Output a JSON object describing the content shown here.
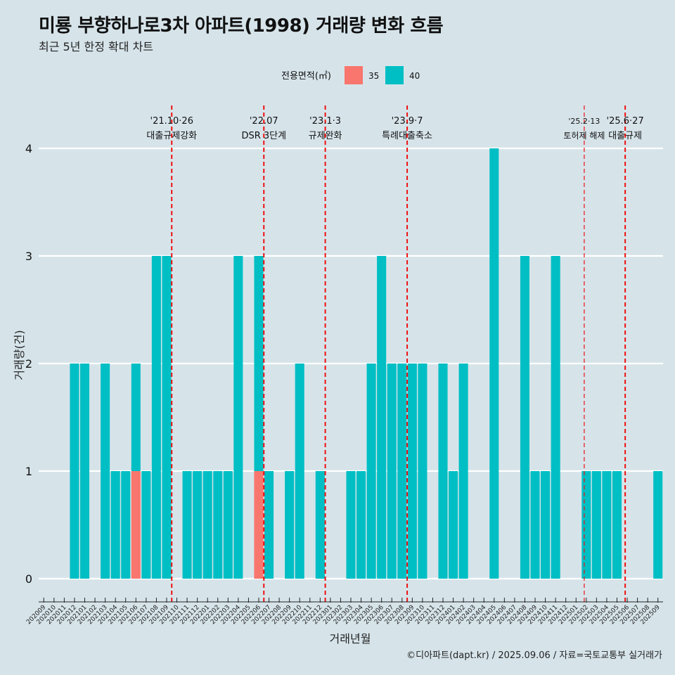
{
  "title": "미룡 부향하나로3차 아파트(1998) 거래량 변화 흐름",
  "subtitle": "최근 5년 한정 확대 차트",
  "credit": "©디아파트(dapt.kr) / 2025.09.06 / 자료=국토교통부 실거래가",
  "colors": {
    "background": "#d6e4ea",
    "s35": "#f8766d",
    "s40": "#00bfc4",
    "event_line": "#ee1111"
  },
  "chart_data": {
    "type": "bar",
    "stacked": true,
    "xlabel": "거래년월",
    "ylabel": "거래량(건)",
    "ylim": [
      0,
      4
    ],
    "yticks": [
      0,
      1,
      2,
      3,
      4
    ],
    "grid": "horizontal major",
    "legend": {
      "title": "전용면적(㎡)",
      "position": "top",
      "entries": [
        "35",
        "40"
      ]
    },
    "categories": [
      "202009",
      "202010",
      "202011",
      "202012",
      "202101",
      "202102",
      "202103",
      "202104",
      "202105",
      "202106",
      "202107",
      "202108",
      "202109",
      "202110",
      "202111",
      "202112",
      "202201",
      "202202",
      "202203",
      "202204",
      "202205",
      "202206",
      "202207",
      "202208",
      "202209",
      "202210",
      "202211",
      "202212",
      "202301",
      "202302",
      "202303",
      "202304",
      "202305",
      "202306",
      "202307",
      "202308",
      "202309",
      "202310",
      "202311",
      "202312",
      "202401",
      "202402",
      "202403",
      "202404",
      "202405",
      "202406",
      "202407",
      "202408",
      "202409",
      "202410",
      "202411",
      "202412",
      "202501",
      "202502",
      "202503",
      "202504",
      "202505",
      "202506",
      "202507",
      "202508",
      "202509"
    ],
    "series": [
      {
        "name": "35",
        "values": [
          0,
          0,
          0,
          0,
          0,
          0,
          0,
          0,
          0,
          1,
          0,
          0,
          0,
          0,
          0,
          0,
          0,
          0,
          0,
          0,
          0,
          1,
          0,
          0,
          0,
          0,
          0,
          0,
          0,
          0,
          0,
          0,
          0,
          0,
          0,
          0,
          0,
          0,
          0,
          0,
          0,
          0,
          0,
          0,
          0,
          0,
          0,
          0,
          0,
          0,
          0,
          0,
          0,
          0,
          0,
          0,
          0,
          0,
          0,
          0,
          0
        ]
      },
      {
        "name": "40",
        "values": [
          0,
          0,
          0,
          2,
          2,
          0,
          2,
          1,
          1,
          1,
          1,
          3,
          3,
          0,
          1,
          1,
          1,
          1,
          1,
          3,
          0,
          2,
          1,
          0,
          1,
          2,
          0,
          1,
          0,
          0,
          1,
          1,
          2,
          3,
          2,
          2,
          2,
          2,
          0,
          2,
          1,
          2,
          0,
          0,
          4,
          0,
          0,
          3,
          1,
          1,
          3,
          0,
          0,
          1,
          1,
          1,
          1,
          0,
          0,
          0,
          1
        ]
      }
    ],
    "events": [
      {
        "date": "'21.10·26",
        "label": "대출규제강화",
        "x": 13
      },
      {
        "date": "'22.07",
        "label": "DSR 3단계",
        "x": 22
      },
      {
        "date": "'23.1·3",
        "label": "규제완화",
        "x": 28
      },
      {
        "date": "'23.9·7",
        "label": "특례대출축소",
        "x": 36
      },
      {
        "date": "'25.2·13",
        "label": "토허제 해제",
        "x": 53.3
      },
      {
        "date": "'25.6·27",
        "label": "대출규제",
        "x": 57.3
      }
    ]
  }
}
